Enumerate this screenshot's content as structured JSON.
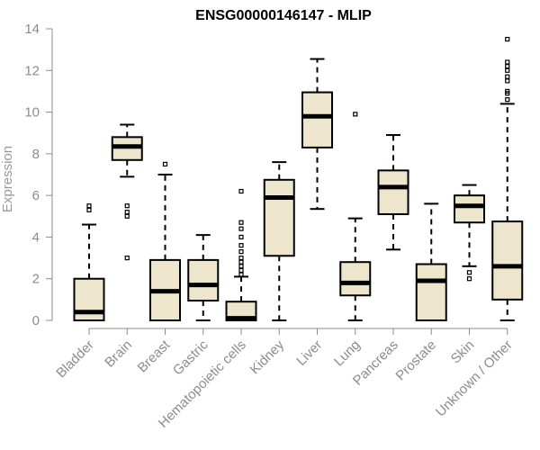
{
  "chart_data": {
    "type": "box",
    "title": "ENSG00000146147 - MLIP",
    "xlabel": "",
    "ylabel": "Expression",
    "ylim": [
      0,
      14
    ],
    "yticks": [
      0,
      2,
      4,
      6,
      8,
      10,
      12,
      14
    ],
    "grid": false,
    "legend": "none",
    "box_fill": "#ede6cc",
    "box_stroke": "#000000",
    "axis_color": "#8c8c8c",
    "categories": [
      "Bladder",
      "Brain",
      "Breast",
      "Gastric",
      "Hematopoietic cells",
      "Kidney",
      "Liver",
      "Lung",
      "Pancreas",
      "Prostate",
      "Skin",
      "Unknown / Other"
    ],
    "series": [
      {
        "values": [
          {
            "min": 0.0,
            "q1": 0.0,
            "median": 0.4,
            "q3": 2.0,
            "max": 4.6,
            "outliers": [
              5.3,
              5.5
            ]
          },
          {
            "min": 6.9,
            "q1": 7.7,
            "median": 8.35,
            "q3": 8.8,
            "max": 9.4,
            "outliers": [
              5.0,
              5.2,
              5.5,
              3.0
            ]
          },
          {
            "min": 0.0,
            "q1": 0.0,
            "median": 1.4,
            "q3": 2.9,
            "max": 7.0,
            "outliers": [
              7.5
            ]
          },
          {
            "min": 0.0,
            "q1": 0.95,
            "median": 1.7,
            "q3": 2.9,
            "max": 4.1,
            "outliers": []
          },
          {
            "min": 0.0,
            "q1": 0.0,
            "median": 0.1,
            "q3": 0.9,
            "max": 2.1,
            "outliers": [
              2.2,
              2.4,
              2.6,
              2.8,
              3.0,
              3.3,
              3.6,
              4.0,
              4.4,
              4.7,
              6.2
            ]
          },
          {
            "min": 0.0,
            "q1": 3.1,
            "median": 5.9,
            "q3": 6.75,
            "max": 7.6,
            "outliers": []
          },
          {
            "min": 5.35,
            "q1": 8.3,
            "median": 9.8,
            "q3": 10.95,
            "max": 12.55,
            "outliers": []
          },
          {
            "min": 0.0,
            "q1": 1.2,
            "median": 1.8,
            "q3": 2.8,
            "max": 4.9,
            "outliers": [
              9.9
            ]
          },
          {
            "min": 3.4,
            "q1": 5.1,
            "median": 6.4,
            "q3": 7.2,
            "max": 8.9,
            "outliers": []
          },
          {
            "min": 0.0,
            "q1": 0.0,
            "median": 1.9,
            "q3": 2.7,
            "max": 5.6,
            "outliers": []
          },
          {
            "min": 2.6,
            "q1": 4.7,
            "median": 5.5,
            "q3": 6.0,
            "max": 6.5,
            "outliers": [
              2.0,
              2.3
            ]
          },
          {
            "min": 0.0,
            "q1": 1.0,
            "median": 2.6,
            "q3": 4.75,
            "max": 10.4,
            "outliers": [
              10.6,
              10.9,
              11.0,
              11.5,
              11.7,
              12.0,
              12.2,
              12.4,
              13.5
            ]
          }
        ]
      }
    ]
  }
}
